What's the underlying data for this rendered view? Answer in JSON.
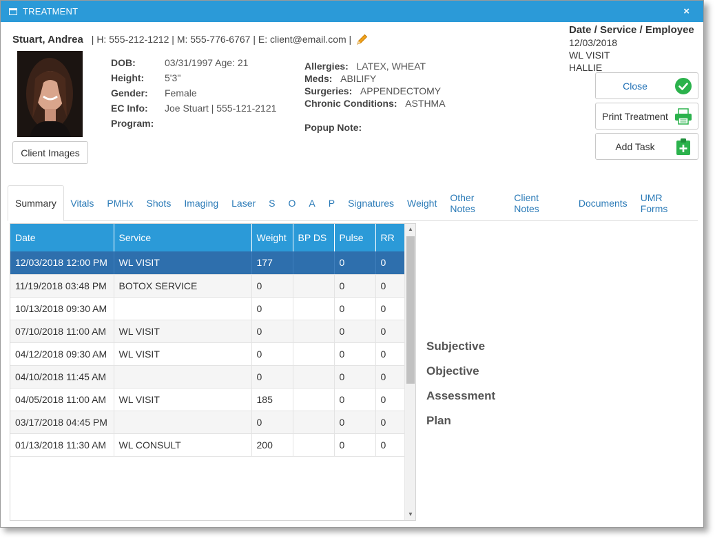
{
  "window": {
    "title": "TREATMENT",
    "close_glyph": "×"
  },
  "client": {
    "name": "Stuart, Andrea",
    "contact": "| H: 555-212-1212 | M: 555-776-6767 | E: client@email.com |",
    "dob_label": "DOB:",
    "dob": "03/31/1997 Age: 21",
    "height_label": "Height:",
    "height": "5'3''",
    "gender_label": "Gender:",
    "gender": "Female",
    "ec_label": "EC Info:",
    "ec": "Joe Stuart | 555-121-2121",
    "program_label": "Program:",
    "program": "",
    "allergies_label": "Allergies:",
    "allergies": "LATEX, WHEAT",
    "meds_label": "Meds:",
    "meds": "ABILIFY",
    "surgeries_label": "Surgeries:",
    "surgeries": "APPENDECTOMY",
    "chronic_label": "Chronic Conditions:",
    "chronic": "ASTHMA",
    "popup_label": "Popup Note:",
    "popup": ""
  },
  "client_images_label": "Client Images",
  "visit": {
    "header": "Date / Service / Employee",
    "date": "12/03/2018",
    "service": "WL VISIT",
    "employee": "HALLIE"
  },
  "actions": {
    "close_label": "Close",
    "print_label": "Print Treatment",
    "add_task_label": "Add Task"
  },
  "tabs": [
    "Summary",
    "Vitals",
    "PMHx",
    "Shots",
    "Imaging",
    "Laser",
    "S",
    "O",
    "A",
    "P",
    "Signatures",
    "Weight",
    "Other Notes",
    "Client Notes",
    "Documents",
    "UMR Forms"
  ],
  "grid": {
    "columns": [
      "Date",
      "Service",
      "Weight",
      "BP DS",
      "Pulse",
      "RR"
    ],
    "rows": [
      [
        "12/03/2018 12:00 PM",
        "WL VISIT",
        "177",
        "",
        "0",
        "0"
      ],
      [
        "11/19/2018 03:48 PM",
        "BOTOX SERVICE",
        "0",
        "",
        "0",
        "0"
      ],
      [
        "10/13/2018 09:30 AM",
        "",
        "0",
        "",
        "0",
        "0"
      ],
      [
        "07/10/2018 11:00 AM",
        "WL VISIT",
        "0",
        "",
        "0",
        "0"
      ],
      [
        "04/12/2018 09:30 AM",
        "WL VISIT",
        "0",
        "",
        "0",
        "0"
      ],
      [
        "04/10/2018 11:45 AM",
        "",
        "0",
        "",
        "0",
        "0"
      ],
      [
        "04/05/2018 11:00 AM",
        "WL VISIT",
        "185",
        "",
        "0",
        "0"
      ],
      [
        "03/17/2018 04:45 PM",
        "",
        "0",
        "",
        "0",
        "0"
      ],
      [
        "01/13/2018 11:30 AM",
        "WL CONSULT",
        "200",
        "",
        "0",
        "0"
      ]
    ]
  },
  "soap": [
    "Subjective",
    "Objective",
    "Assessment",
    "Plan"
  ],
  "colors": {
    "accent": "#2b9ad8",
    "selected_row": "#2e6fad",
    "link": "#2a7ab7",
    "success": "#2bb24c"
  }
}
